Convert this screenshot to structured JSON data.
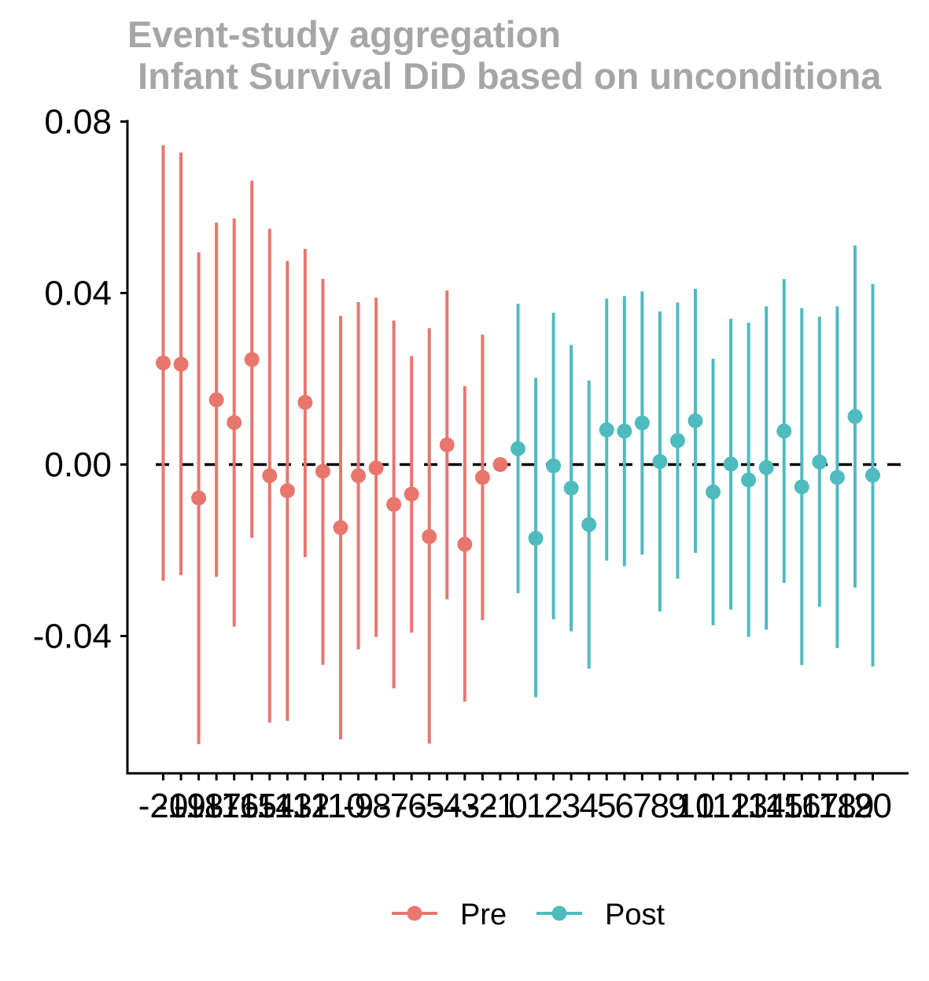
{
  "chart_data": {
    "type": "scatter",
    "subtype": "event-study point-range",
    "title": "Event-study aggregation",
    "subtitle": " Infant Survival DiD based on unconditiona",
    "xlabel": "",
    "ylabel": "",
    "ylim": [
      -0.072,
      0.08
    ],
    "yticks": [
      0.08,
      0.04,
      0.0,
      -0.04
    ],
    "ytick_labels": [
      "0.08",
      "0.04",
      "0.00",
      "-0.04"
    ],
    "reference_line": {
      "y": 0.0,
      "style": "dashed",
      "color": "#000000"
    },
    "legend": {
      "position": "bottom"
    },
    "grid": false,
    "series": [
      {
        "name": "Pre",
        "color": "#e8766d",
        "x": [
          -20,
          -19,
          -18,
          -17,
          -16,
          -15,
          -14,
          -13,
          -12,
          -11,
          -10,
          -9,
          -8,
          -7,
          -6,
          -5,
          -4,
          -3,
          -2,
          -1
        ],
        "x_labels": [
          "-20",
          "-19",
          "-18",
          "-17",
          "-16",
          "-15",
          "-14",
          "-13",
          "-12",
          "-11",
          "-10",
          "-9",
          "-8",
          "-7",
          "-6",
          "-5",
          "-4",
          "-3",
          "-2",
          "-1"
        ],
        "estimate": [
          0.0237,
          0.0234,
          -0.0078,
          0.0151,
          0.0098,
          0.0245,
          -0.0026,
          -0.0061,
          0.0145,
          -0.0016,
          -0.0147,
          -0.0026,
          -0.0008,
          -0.0093,
          -0.0069,
          -0.0168,
          0.0046,
          -0.0186,
          -0.003,
          0.0
        ],
        "ci_upper": [
          0.0745,
          0.0728,
          0.0495,
          0.0564,
          0.0574,
          0.0662,
          0.055,
          0.0475,
          0.0503,
          0.0433,
          0.0347,
          0.0379,
          0.0389,
          0.0336,
          0.0253,
          0.0318,
          0.0406,
          0.0183,
          0.0303,
          0.0
        ],
        "ci_lower": [
          -0.0271,
          -0.0258,
          -0.0652,
          -0.0262,
          -0.0378,
          -0.0171,
          -0.0602,
          -0.0598,
          -0.0216,
          -0.0467,
          -0.0641,
          -0.0431,
          -0.0402,
          -0.0522,
          -0.0392,
          -0.0651,
          -0.0314,
          -0.0553,
          -0.0363,
          0.0
        ]
      },
      {
        "name": "Post",
        "color": "#4fbbbf",
        "x": [
          0,
          1,
          2,
          3,
          4,
          5,
          6,
          7,
          8,
          9,
          10,
          11,
          12,
          13,
          14,
          15,
          16,
          17,
          18,
          19,
          20
        ],
        "x_labels": [
          "0",
          "1",
          "2",
          "3",
          "4",
          "5",
          "6",
          "7",
          "8",
          "9",
          "10",
          "11",
          "12",
          "13",
          "14",
          "15",
          "16",
          "17",
          "18",
          "19",
          "20"
        ],
        "estimate": [
          0.0037,
          -0.0172,
          -0.0003,
          -0.0055,
          -0.014,
          0.0081,
          0.0078,
          0.0097,
          0.0007,
          0.0056,
          0.0102,
          -0.0064,
          0.0001,
          -0.0036,
          -0.0007,
          0.0078,
          -0.0052,
          0.0006,
          -0.003,
          0.0112,
          -0.0025
        ],
        "ci_upper": [
          0.0375,
          0.0202,
          0.0354,
          0.0279,
          0.0196,
          0.0387,
          0.0393,
          0.0404,
          0.0357,
          0.0378,
          0.041,
          0.0247,
          0.034,
          0.0331,
          0.0369,
          0.0432,
          0.0365,
          0.0345,
          0.0369,
          0.0511,
          0.0421
        ],
        "ci_lower": [
          -0.03,
          -0.0543,
          -0.0361,
          -0.0389,
          -0.0476,
          -0.0224,
          -0.0237,
          -0.021,
          -0.0343,
          -0.0266,
          -0.0206,
          -0.0375,
          -0.0338,
          -0.0402,
          -0.0385,
          -0.0276,
          -0.0468,
          -0.0332,
          -0.0428,
          -0.0287,
          -0.0471
        ]
      }
    ]
  }
}
